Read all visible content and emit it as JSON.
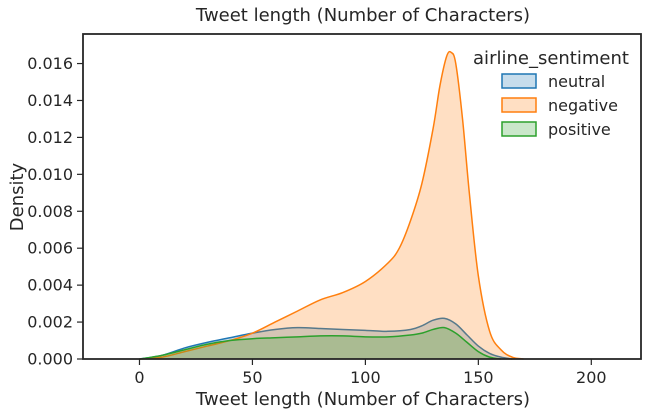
{
  "chart_data": {
    "type": "area",
    "title": "Tweet length (Number of Characters)",
    "xlabel": "Tweet length (Number of Characters)",
    "ylabel": "Density",
    "xlim": [
      -25,
      222
    ],
    "ylim": [
      0,
      0.0176
    ],
    "xticks": [
      0,
      50,
      100,
      150,
      200
    ],
    "yticks": [
      0.0,
      0.002,
      0.004,
      0.006,
      0.008,
      0.01,
      0.012,
      0.014,
      0.016
    ],
    "ytick_labels": [
      "0.000",
      "0.002",
      "0.004",
      "0.006",
      "0.008",
      "0.010",
      "0.012",
      "0.014",
      "0.016"
    ],
    "grid": false,
    "legend": {
      "title": "airline_sentiment",
      "position": "top-right"
    },
    "series": [
      {
        "name": "neutral",
        "color": "#1f77b4",
        "x": [
          0,
          10,
          20,
          30,
          40,
          50,
          60,
          70,
          80,
          90,
          100,
          110,
          120,
          125,
          130,
          135,
          140,
          145,
          150,
          155,
          160,
          165
        ],
        "y": [
          0.0,
          0.0002,
          0.0006,
          0.0009,
          0.00115,
          0.0014,
          0.0016,
          0.0017,
          0.00165,
          0.0016,
          0.00155,
          0.0015,
          0.0016,
          0.0018,
          0.0021,
          0.0022,
          0.0019,
          0.0013,
          0.0007,
          0.0003,
          0.0001,
          0.0
        ]
      },
      {
        "name": "negative",
        "color": "#ff7f0e",
        "x": [
          0,
          10,
          20,
          30,
          40,
          50,
          60,
          70,
          80,
          90,
          100,
          110,
          115,
          120,
          125,
          130,
          133,
          136,
          138,
          140,
          143,
          146,
          150,
          155,
          160,
          165,
          170
        ],
        "y": [
          0.0,
          0.0001,
          0.0004,
          0.0007,
          0.001,
          0.0014,
          0.002,
          0.0026,
          0.0032,
          0.0036,
          0.0042,
          0.0052,
          0.006,
          0.0075,
          0.0095,
          0.0125,
          0.0148,
          0.0164,
          0.0166,
          0.016,
          0.013,
          0.009,
          0.0045,
          0.0015,
          0.0005,
          0.0001,
          0.0
        ]
      },
      {
        "name": "positive",
        "color": "#2ca02c",
        "x": [
          0,
          10,
          20,
          30,
          40,
          50,
          60,
          70,
          80,
          90,
          100,
          110,
          120,
          125,
          130,
          135,
          140,
          145,
          150,
          155,
          160
        ],
        "y": [
          0.0,
          0.0002,
          0.0005,
          0.0008,
          0.001,
          0.0011,
          0.00115,
          0.0012,
          0.00125,
          0.00125,
          0.0012,
          0.0012,
          0.0013,
          0.0014,
          0.0016,
          0.0017,
          0.0014,
          0.0009,
          0.0004,
          0.0001,
          0.0
        ]
      }
    ]
  }
}
